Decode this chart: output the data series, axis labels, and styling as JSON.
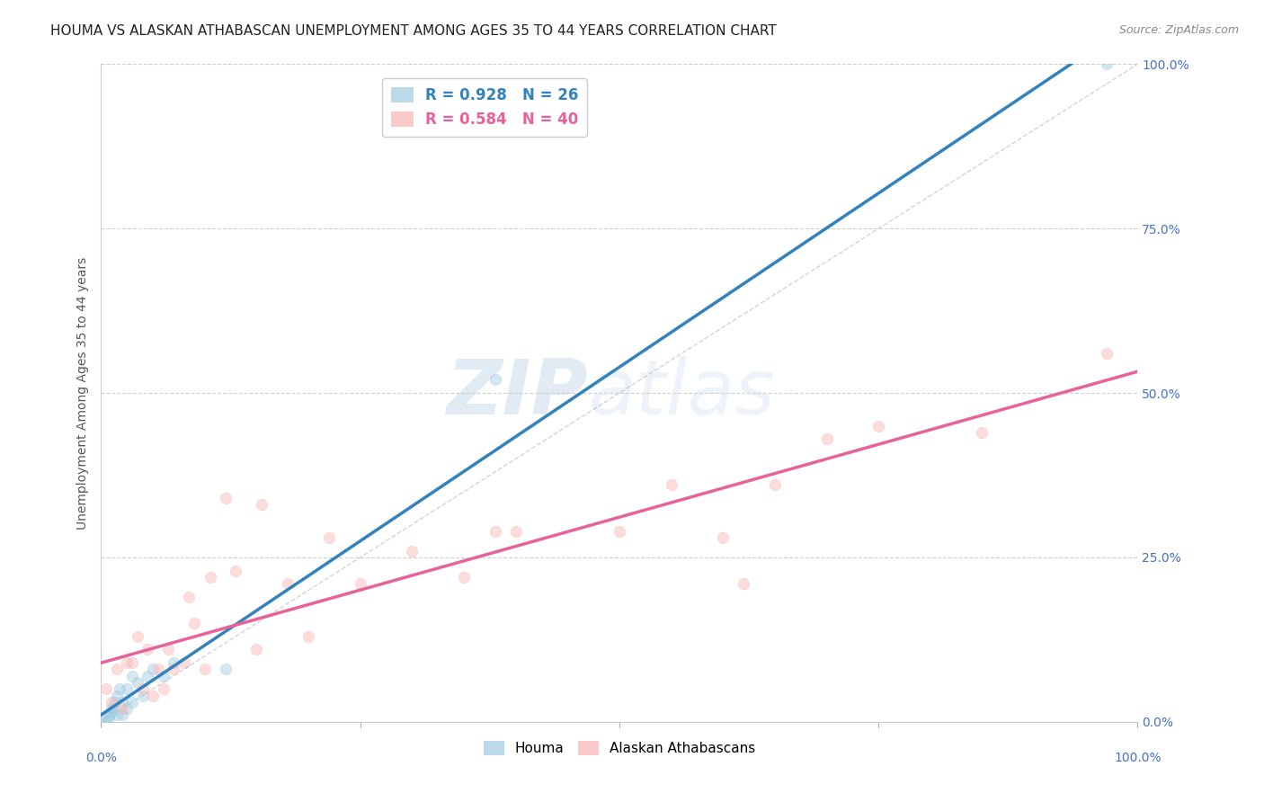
{
  "title": "HOUMA VS ALASKAN ATHABASCAN UNEMPLOYMENT AMONG AGES 35 TO 44 YEARS CORRELATION CHART",
  "source": "Source: ZipAtlas.com",
  "ylabel": "Unemployment Among Ages 35 to 44 years",
  "watermark": "ZIPatlas",
  "houma_R": 0.928,
  "houma_N": 26,
  "athabascan_R": 0.584,
  "athabascan_N": 40,
  "houma_color": "#9ecae1",
  "athabascan_color": "#fcb3b3",
  "houma_line_color": "#3182bd",
  "athabascan_line_color": "#e8629a",
  "background_color": "#ffffff",
  "grid_color": "#cccccc",
  "axis_label_color": "#4472c4",
  "xlim": [
    0.0,
    1.0
  ],
  "ylim": [
    0.0,
    1.0
  ],
  "ytick_labels": [
    "0.0%",
    "25.0%",
    "50.0%",
    "75.0%",
    "100.0%"
  ],
  "ytick_positions": [
    0.0,
    0.25,
    0.5,
    0.75,
    1.0
  ],
  "houma_x": [
    0.0,
    0.005,
    0.007,
    0.008,
    0.01,
    0.01,
    0.012,
    0.013,
    0.015,
    0.015,
    0.018,
    0.02,
    0.02,
    0.025,
    0.025,
    0.03,
    0.03,
    0.035,
    0.04,
    0.045,
    0.05,
    0.06,
    0.07,
    0.12,
    0.38,
    0.97
  ],
  "houma_y": [
    0.005,
    0.0,
    0.005,
    0.01,
    0.015,
    0.02,
    0.02,
    0.03,
    0.01,
    0.04,
    0.05,
    0.01,
    0.03,
    0.02,
    0.05,
    0.03,
    0.07,
    0.06,
    0.04,
    0.07,
    0.08,
    0.07,
    0.09,
    0.08,
    0.52,
    1.0
  ],
  "athabascan_x": [
    0.005,
    0.01,
    0.015,
    0.02,
    0.025,
    0.03,
    0.035,
    0.04,
    0.045,
    0.05,
    0.055,
    0.06,
    0.065,
    0.07,
    0.08,
    0.085,
    0.09,
    0.1,
    0.105,
    0.12,
    0.13,
    0.15,
    0.155,
    0.18,
    0.2,
    0.22,
    0.25,
    0.3,
    0.35,
    0.38,
    0.4,
    0.5,
    0.55,
    0.6,
    0.62,
    0.65,
    0.7,
    0.75,
    0.85,
    0.97
  ],
  "athabascan_y": [
    0.05,
    0.03,
    0.08,
    0.02,
    0.09,
    0.09,
    0.13,
    0.05,
    0.11,
    0.04,
    0.08,
    0.05,
    0.11,
    0.08,
    0.09,
    0.19,
    0.15,
    0.08,
    0.22,
    0.34,
    0.23,
    0.11,
    0.33,
    0.21,
    0.13,
    0.28,
    0.21,
    0.26,
    0.22,
    0.29,
    0.29,
    0.29,
    0.36,
    0.28,
    0.21,
    0.36,
    0.43,
    0.45,
    0.44,
    0.56
  ],
  "title_fontsize": 11,
  "source_fontsize": 9,
  "axis_label_fontsize": 10,
  "tick_fontsize": 10,
  "legend_fontsize": 12,
  "marker_size": 80,
  "marker_alpha": 0.45,
  "line_width": 2.5
}
